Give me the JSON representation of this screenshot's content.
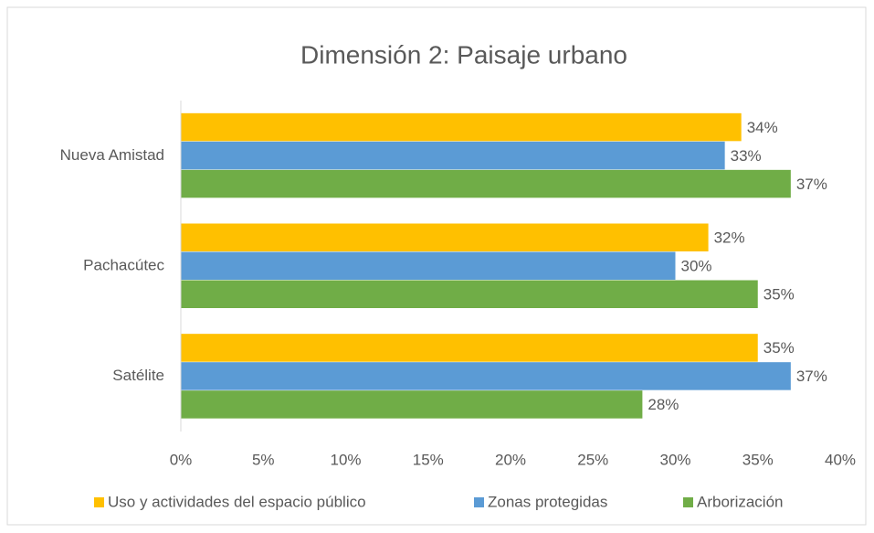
{
  "chart_data": {
    "type": "bar",
    "orientation": "horizontal",
    "title": "Dimensión 2: Paisaje urbano",
    "categories": [
      "Nueva Amistad",
      "Pachacútec",
      "Satélite"
    ],
    "series": [
      {
        "name": "Uso y actividades del espacio público",
        "color": "#FFC000",
        "values": [
          34,
          32,
          35
        ],
        "value_labels": [
          "34%",
          "32%",
          "35%"
        ]
      },
      {
        "name": "Zonas protegidas",
        "color": "#5B9BD5",
        "values": [
          33,
          30,
          37
        ],
        "value_labels": [
          "33%",
          "30%",
          "37%"
        ]
      },
      {
        "name": "Arborización",
        "color": "#70AD47",
        "values": [
          37,
          35,
          28
        ],
        "value_labels": [
          "37%",
          "35%",
          "28%"
        ]
      }
    ],
    "xlim": [
      0,
      40
    ],
    "xticks": [
      {
        "value": 0,
        "label": "0%"
      },
      {
        "value": 5,
        "label": "5%"
      },
      {
        "value": 10,
        "label": "10%"
      },
      {
        "value": 15,
        "label": "15%"
      },
      {
        "value": 20,
        "label": "20%"
      },
      {
        "value": 25,
        "label": "25%"
      },
      {
        "value": 30,
        "label": "30%"
      },
      {
        "value": 35,
        "label": "35%"
      },
      {
        "value": 40,
        "label": "40%"
      }
    ],
    "legend": "bottom"
  }
}
